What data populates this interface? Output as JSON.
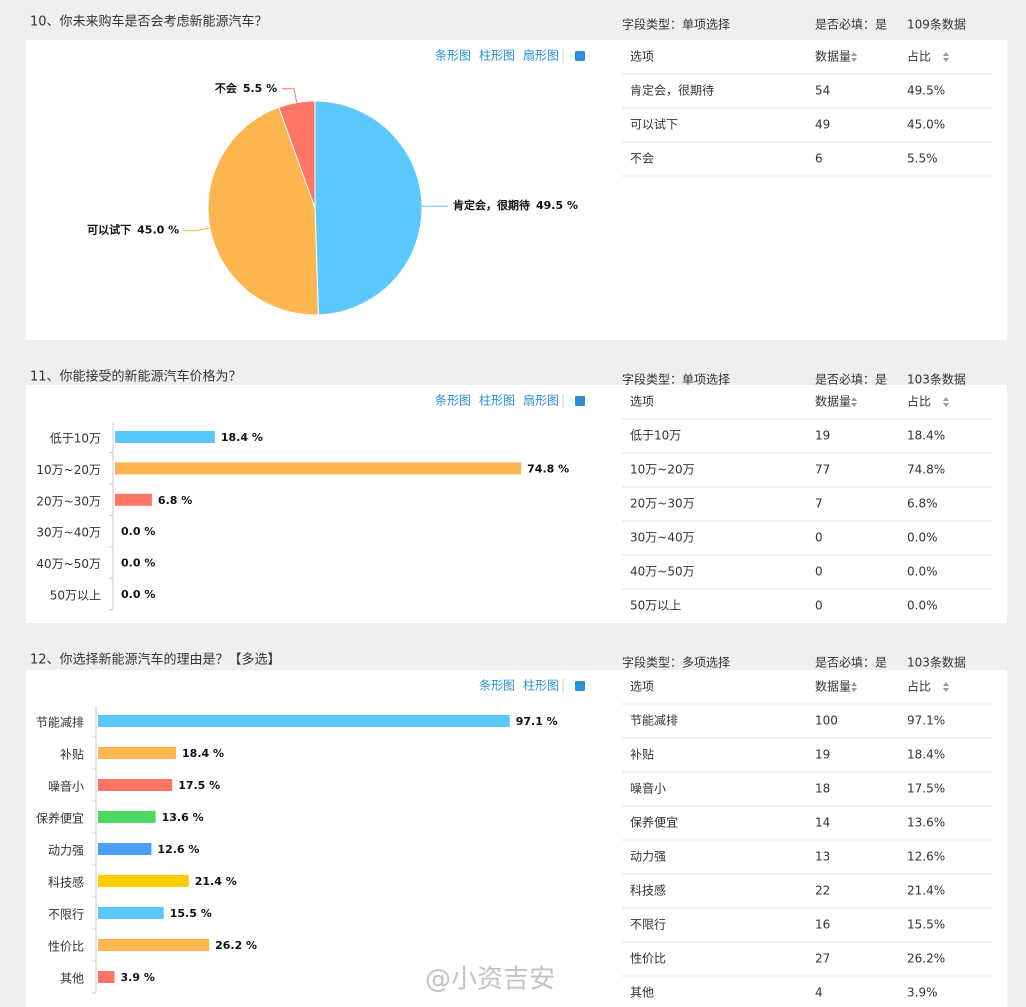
{
  "chart_data": [
    {
      "type": "pie",
      "categories": [
        "肯定会，很期待",
        "可以试下",
        "不会"
      ],
      "values": [
        49.5,
        45.0,
        5.5
      ],
      "value_labels": [
        "49.5 %",
        "45.0 %",
        "5.5 %"
      ],
      "colors": [
        "#5bc8fb",
        "#fdb54f",
        "#fe7566"
      ]
    },
    {
      "type": "bar",
      "orientation": "horizontal",
      "categories": [
        "低于10万",
        "10万~20万",
        "20万~30万",
        "30万~40万",
        "40万~50万",
        "50万以上"
      ],
      "values": [
        18.4,
        74.8,
        6.8,
        0.0,
        0.0,
        0.0
      ],
      "value_labels": [
        "18.4 %",
        "74.8 %",
        "6.8 %",
        "0.0 %",
        "0.0 %",
        "0.0 %"
      ],
      "colors": [
        "#5bc8fb",
        "#fdb54f",
        "#fe7566",
        "#5bc8fb",
        "#fdb54f",
        "#fe7566"
      ],
      "xlim": [
        0,
        100
      ]
    },
    {
      "type": "bar",
      "orientation": "horizontal",
      "categories": [
        "节能减排",
        "补贴",
        "噪音小",
        "保养便宜",
        "动力强",
        "科技感",
        "不限行",
        "性价比",
        "其他"
      ],
      "values": [
        97.1,
        18.4,
        17.5,
        13.6,
        12.6,
        21.4,
        15.5,
        26.2,
        3.9
      ],
      "value_labels": [
        "97.1 %",
        "18.4 %",
        "17.5 %",
        "13.6 %",
        "12.6 %",
        "21.4 %",
        "15.5 %",
        "26.2 %",
        "3.9 %"
      ],
      "colors": [
        "#5bc8fb",
        "#fdb54f",
        "#fe7566",
        "#4cd964",
        "#4a9ff5",
        "#ffcc00",
        "#5bc8fb",
        "#fdb54f",
        "#fe7566"
      ],
      "xlim": [
        0,
        100
      ]
    }
  ],
  "sections": [
    {
      "title": "10、你未来购车是否会考虑新能源汽车？",
      "field_type": "字段类型：单项选择",
      "required": "是否必填：是",
      "count": "109条数据",
      "views": [
        "条形图",
        "柱形图",
        "扇形图"
      ],
      "table": {
        "header": [
          "选项",
          "数据量",
          "占比"
        ],
        "rows": [
          [
            "肯定会，很期待",
            54,
            "49.5%"
          ],
          [
            "可以试下",
            49,
            "45.0%"
          ],
          [
            "不会",
            6,
            "5.5%"
          ]
        ]
      }
    },
    {
      "title": "11、你能接受的新能源汽车价格为？",
      "field_type": "字段类型：单项选择",
      "required": "是否必填：是",
      "count": "103条数据",
      "views": [
        "条形图",
        "柱形图",
        "扇形图"
      ],
      "table": {
        "header": [
          "选项",
          "数据量",
          "占比"
        ],
        "rows": [
          [
            "低于10万",
            19,
            "18.4%"
          ],
          [
            "10万~20万",
            77,
            "74.8%"
          ],
          [
            "20万~30万",
            7,
            "6.8%"
          ],
          [
            "30万~40万",
            0,
            "0.0%"
          ],
          [
            "40万~50万",
            0,
            "0.0%"
          ],
          [
            "50万以上",
            0,
            "0.0%"
          ]
        ]
      }
    },
    {
      "title": "12、你选择新能源汽车的理由是？【多选】",
      "field_type": "字段类型：多项选择",
      "required": "是否必填：是",
      "count": "103条数据",
      "views": [
        "条形图",
        "柱形图"
      ],
      "table": {
        "header": [
          "选项",
          "数据量",
          "占比"
        ],
        "rows": [
          [
            "节能减排",
            100,
            "97.1%"
          ],
          [
            "补贴",
            19,
            "18.4%"
          ],
          [
            "噪音小",
            18,
            "17.5%"
          ],
          [
            "保养便宜",
            14,
            "13.6%"
          ],
          [
            "动力强",
            13,
            "12.6%"
          ],
          [
            "科技感",
            22,
            "21.4%"
          ],
          [
            "不限行",
            16,
            "15.5%"
          ],
          [
            "性价比",
            27,
            "26.2%"
          ],
          [
            "其他",
            4,
            "3.9%"
          ]
        ]
      }
    }
  ],
  "watermark": "@小资吉安"
}
